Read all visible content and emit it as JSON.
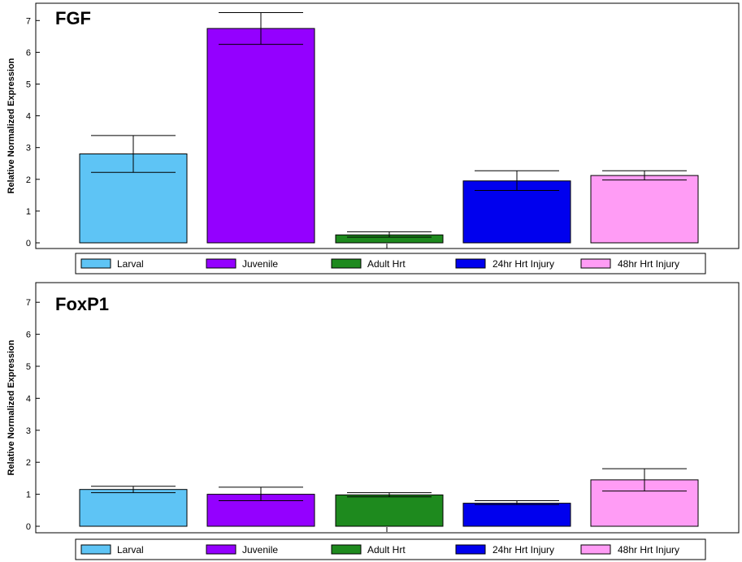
{
  "chart_data": [
    {
      "type": "bar",
      "title": "FGF",
      "ylabel": "Relative Normalized Expression",
      "xlabel": "",
      "ylim": [
        0,
        7.5
      ],
      "yticks": [
        "0",
        "1",
        "2",
        "3",
        "4",
        "5",
        "6",
        "7"
      ],
      "grid": false,
      "legend_position": "bottom",
      "categories": [
        "Larval",
        "Juvenile",
        "Adult Hrt",
        "24hr Hrt Injury",
        "48hr Hrt Injury"
      ],
      "values": [
        2.8,
        6.75,
        0.25,
        1.95,
        2.12
      ],
      "error_low": [
        2.22,
        6.25,
        0.18,
        1.65,
        1.98
      ],
      "error_high": [
        3.38,
        7.25,
        0.35,
        2.27,
        2.27
      ],
      "colors": [
        "#5ec4f5",
        "#9400ff",
        "#1e8a1e",
        "#0000ee",
        "#ff9cf5"
      ]
    },
    {
      "type": "bar",
      "title": "FoxP1",
      "ylabel": "Relative Normalized Expression",
      "xlabel": "",
      "ylim": [
        0,
        7.5
      ],
      "yticks": [
        "0",
        "1",
        "2",
        "3",
        "4",
        "5",
        "6",
        "7"
      ],
      "grid": false,
      "legend_position": "bottom",
      "categories": [
        "Larval",
        "Juvenile",
        "Adult Hrt",
        "24hr Hrt Injury",
        "48hr Hrt Injury"
      ],
      "values": [
        1.15,
        1.0,
        0.98,
        0.72,
        1.45
      ],
      "error_low": [
        1.05,
        0.8,
        0.92,
        0.68,
        1.1
      ],
      "error_high": [
        1.25,
        1.22,
        1.05,
        0.8,
        1.8
      ],
      "colors": [
        "#5ec4f5",
        "#9400ff",
        "#1e8a1e",
        "#0000ee",
        "#ff9cf5"
      ]
    }
  ]
}
